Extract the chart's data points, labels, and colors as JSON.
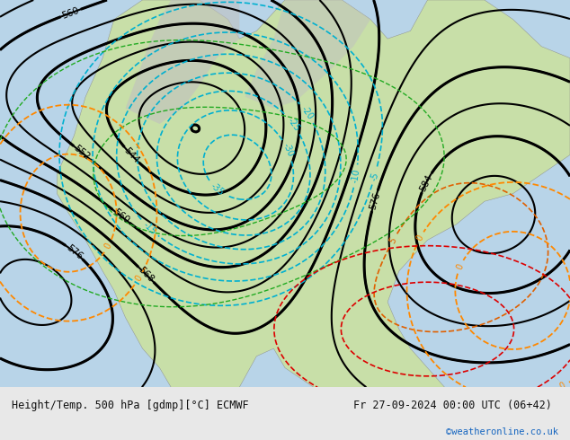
{
  "title_left": "Height/Temp. 500 hPa [gdmp][°C] ECMWF",
  "title_right": "Fr 27-09-2024 00:00 UTC (06+42)",
  "credit": "©weatheronline.co.uk",
  "bg_color": "#c8e6c9",
  "land_color": "#c8e6c9",
  "sea_color": "#d0e8f0",
  "footer_bg": "#e8e8e8",
  "footer_text_color": "#111111",
  "credit_color": "#1565c0",
  "figsize": [
    6.34,
    4.9
  ],
  "dpi": 100
}
